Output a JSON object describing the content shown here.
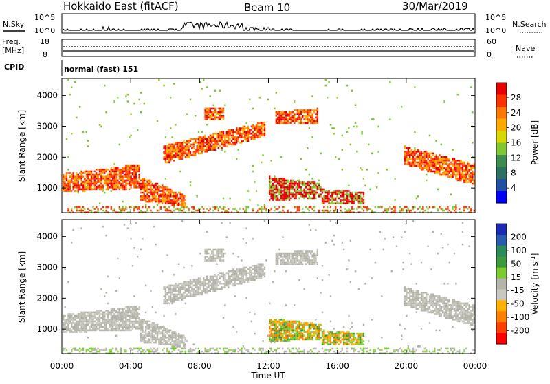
{
  "header": {
    "station": "Hokkaido East (fitACF)",
    "beam": "Beam 10",
    "date": "30/Mar/2019"
  },
  "top_panels": {
    "nsky_label": "N.Sky",
    "nsky_ticks": [
      "10^5",
      "10^0"
    ],
    "nsearch_label": "N.Search",
    "nsearch_ticks": [
      "10^5",
      "10^0"
    ],
    "freq_label": "Freq.",
    "freq_unit": "[MHz]",
    "freq_ticks": [
      "18",
      "8"
    ],
    "nave_label": "Nave",
    "nave_ticks": [
      "60",
      "0"
    ],
    "cpid_label": "CPID",
    "cpid_text": "normal (fast) 151"
  },
  "chart_data": [
    {
      "type": "heatmap",
      "name": "power-panel",
      "ylabel": "Slant Range [km]",
      "xlabel": "",
      "ylim": [
        200,
        4550
      ],
      "yticks": [
        "1000",
        "2000",
        "3000",
        "4000"
      ],
      "xticks": [
        "00:00",
        "04:00",
        "08:00",
        "12:00",
        "16:00",
        "20:00",
        "00:00"
      ],
      "colorbar": {
        "label": "Power [dB]",
        "ticks": [
          "28",
          "24",
          "20",
          "16",
          "12",
          "8",
          "4"
        ],
        "colors": [
          "#e60000",
          "#ff3300",
          "#ff7700",
          "#ffaa00",
          "#d8d800",
          "#7fc832",
          "#3c8c50",
          "#2d7060",
          "#2050a0",
          "#0000ff"
        ]
      }
    },
    {
      "type": "heatmap",
      "name": "velocity-panel",
      "ylabel": "Slant Range [km]",
      "xlabel": "Time UT",
      "ylim": [
        200,
        4550
      ],
      "yticks": [
        "1000",
        "2000",
        "3000",
        "4000"
      ],
      "xticks": [
        "00:00",
        "04:00",
        "08:00",
        "12:00",
        "16:00",
        "20:00",
        "00:00"
      ],
      "colorbar": {
        "label": "Velocity [m s",
        "label_sup": "-1",
        "label_end": "]",
        "ticks": [
          "200",
          "100",
          "50",
          "15",
          "-15",
          "-50",
          "-100",
          "-200"
        ],
        "colors": [
          "#1a2ab4",
          "#2a5ab0",
          "#2a8a5a",
          "#3c9a3c",
          "#7ccc30",
          "#b4b4a8",
          "#c8c8c0",
          "#ffb000",
          "#ff8000",
          "#ff4000",
          "#ff0000"
        ]
      }
    }
  ]
}
